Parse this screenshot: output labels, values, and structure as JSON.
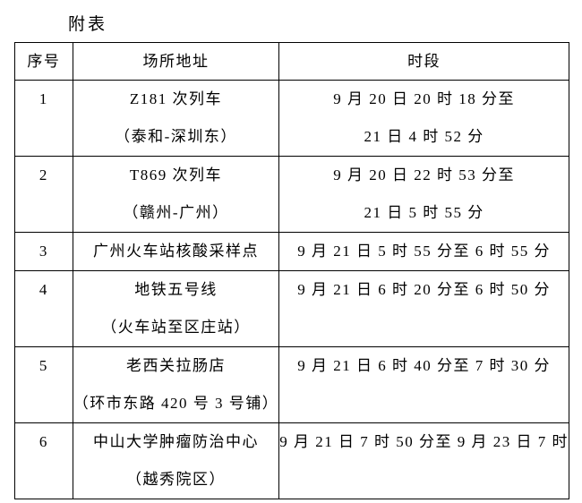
{
  "title": "附表",
  "table": {
    "headers": [
      "序号",
      "场所地址",
      "时段"
    ],
    "rows": [
      {
        "no": "1",
        "place": [
          "Z181 次列车",
          "（泰和-深圳东）"
        ],
        "time": [
          "9 月 20 日 20 时 18 分至",
          "21 日 4 时 52 分"
        ]
      },
      {
        "no": "2",
        "place": [
          "T869 次列车",
          "（赣州-广州）"
        ],
        "time": [
          "9 月 20 日 22 时 53 分至",
          "21 日 5 时 55 分"
        ]
      },
      {
        "no": "3",
        "place": [
          "广州火车站核酸采样点"
        ],
        "time": [
          "9 月 21 日 5 时 55 分至 6 时 55 分"
        ]
      },
      {
        "no": "4",
        "place": [
          "地铁五号线",
          "（火车站至区庄站）"
        ],
        "time": [
          "9 月 21 日 6 时 20 分至 6 时 50 分"
        ]
      },
      {
        "no": "5",
        "place": [
          "老西关拉肠店",
          "（环市东路 420 号 3 号铺）"
        ],
        "time": [
          "9 月 21 日 6 时 40 分至 7 时 30 分"
        ]
      },
      {
        "no": "6",
        "place": [
          "中山大学肿瘤防治中心",
          "（越秀院区）"
        ],
        "time": [
          "9 月 21 日 7 时 50 分至 9 月 23 日 7 时"
        ]
      }
    ]
  }
}
